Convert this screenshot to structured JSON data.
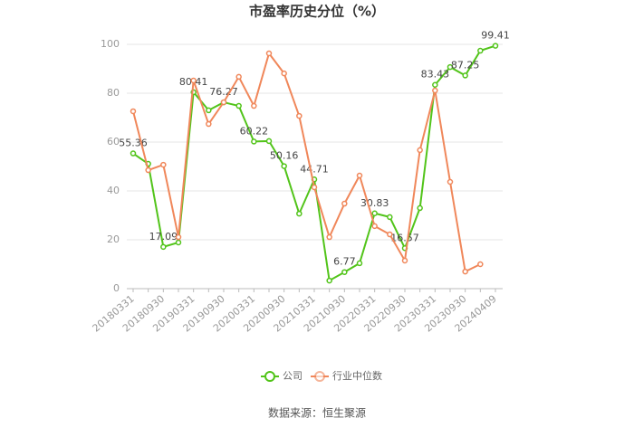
{
  "chart_data": {
    "type": "line",
    "title": "市盈率历史分位（%）",
    "categories": [
      "20180331",
      null,
      "20180930",
      null,
      "20190331",
      null,
      "20190930",
      null,
      "20200331",
      null,
      "20200930",
      null,
      "20210331",
      null,
      "20210930",
      null,
      "20220331",
      null,
      "20220930",
      null,
      "20230331",
      null,
      "20230930",
      null,
      "20240409"
    ],
    "series": [
      {
        "name": "公司",
        "color": "#52c41a",
        "values": [
          55.36,
          51.1,
          17.09,
          18.9,
          80.41,
          73,
          76.27,
          74.8,
          60.22,
          60.4,
          50.16,
          30.7,
          44.71,
          3.3,
          6.77,
          10.4,
          30.83,
          29.3,
          16.57,
          33,
          83.43,
          90.7,
          87.25,
          97.4,
          99.41
        ]
      },
      {
        "name": "行业中位数",
        "color": "#f0875a",
        "values": [
          72.6,
          48.5,
          50.7,
          21.1,
          85.2,
          67.4,
          76.3,
          86.7,
          74.8,
          96.3,
          88.1,
          70.7,
          41.5,
          21.1,
          34.8,
          46.3,
          25.6,
          22.2,
          11.5,
          56.7,
          81.1,
          43.7,
          7,
          10,
          null
        ]
      }
    ],
    "ylim": [
      0,
      100
    ],
    "yticks": [
      0,
      20,
      40,
      60,
      80,
      100
    ],
    "grid": true,
    "legend": "bottom",
    "source": "数据来源：恒生聚源"
  }
}
